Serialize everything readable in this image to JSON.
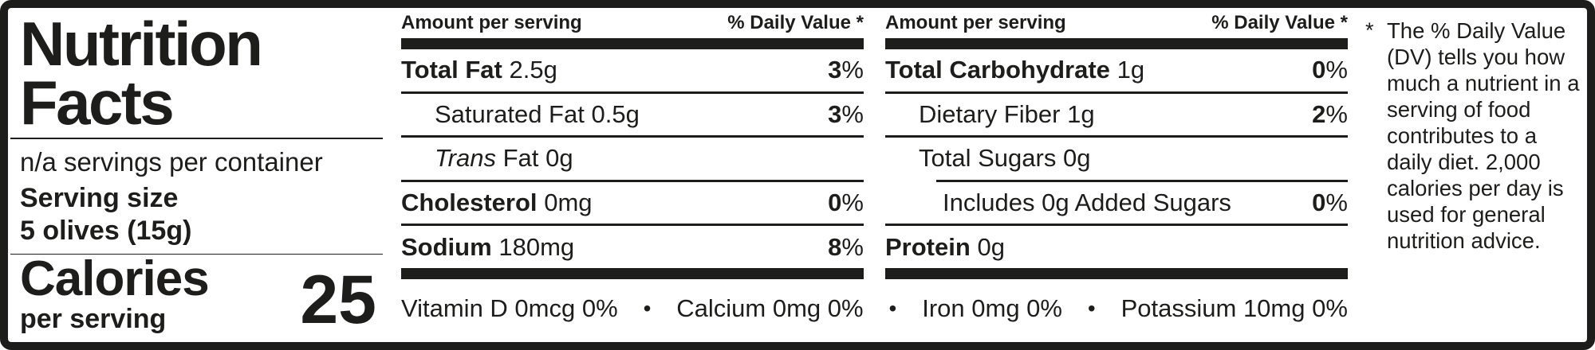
{
  "colors": {
    "text": "#1d1d1b",
    "background": "#ffffff"
  },
  "title_lines": [
    "Nutrition",
    "Facts"
  ],
  "servings_per_container": "n/a servings per container",
  "serving_size_label": "Serving size",
  "serving_size_value": "5 olives (15g)",
  "calories": {
    "label": "Calories",
    "sublabel": "per serving",
    "value": "25"
  },
  "columns": [
    {
      "header_left": "Amount per serving",
      "header_right": "% Daily Value *",
      "rows": [
        {
          "name": "Total Fat",
          "amount": "2.5g",
          "dv_num": "3",
          "dv_pct": "%"
        },
        {
          "name_plain": "Saturated Fat",
          "amount": "0.5g",
          "dv_num": "3",
          "dv_pct": "%"
        },
        {
          "name_italic": "Trans",
          "name_plain": "Fat",
          "amount": "0g",
          "dv_num": "",
          "dv_pct": ""
        },
        {
          "name": "Cholesterol",
          "amount": "0mg",
          "dv_num": "0",
          "dv_pct": "%"
        },
        {
          "name": "Sodium",
          "amount": "180mg",
          "dv_num": "8",
          "dv_pct": "%"
        }
      ]
    },
    {
      "header_left": "Amount per serving",
      "header_right": "% Daily Value *",
      "rows": [
        {
          "name": "Total Carbohydrate",
          "amount": "1g",
          "dv_num": "0",
          "dv_pct": "%"
        },
        {
          "name_plain": "Dietary Fiber",
          "amount": "1g",
          "dv_num": "2",
          "dv_pct": "%"
        },
        {
          "name_plain": "Total Sugars",
          "amount": "0g",
          "dv_num": "",
          "dv_pct": ""
        },
        {
          "name_plain": "Includes 0g Added Sugars",
          "amount": "",
          "dv_num": "0",
          "dv_pct": "%"
        },
        {
          "name": "Protein",
          "amount": "0g",
          "dv_num": "",
          "dv_pct": ""
        }
      ]
    }
  ],
  "micronutrients": {
    "separator": "•",
    "items": [
      "Vitamin D 0mcg 0%",
      "Calcium 0mg 0%",
      "Iron 0mg 0%",
      "Potassium 10mg 0%"
    ]
  },
  "footnote": {
    "marker": "*",
    "text": "The % Daily Value (DV) tells you how much a nutrient in a serving of food contributes to a daily diet. 2,000 calories per day is used for general nutrition advice."
  }
}
